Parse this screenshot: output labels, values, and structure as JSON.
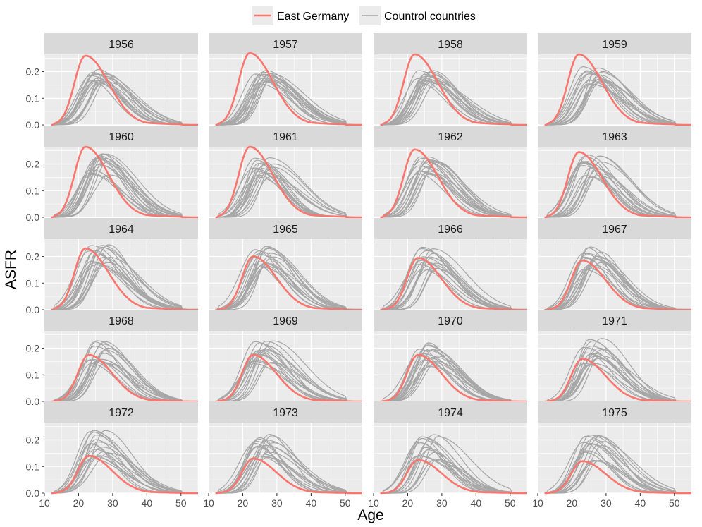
{
  "chart_data": {
    "type": "line",
    "xlabel": "Age",
    "ylabel": "ASFR",
    "xlim": [
      10,
      55
    ],
    "ylim": [
      0,
      0.265
    ],
    "x_ticks": [
      10,
      20,
      30,
      40,
      50
    ],
    "x_tick_labels": [
      "10",
      "20",
      "30",
      "40",
      "50"
    ],
    "y_ticks": [
      0.0,
      0.1,
      0.2
    ],
    "y_tick_labels": [
      "0.0",
      "0.1",
      "0.2"
    ],
    "legend": {
      "position": "top",
      "entries": [
        {
          "label": "East Germany",
          "color": "#f8766d"
        },
        {
          "label": "Countrol countries",
          "color": "#a6a6a6"
        }
      ]
    },
    "colors": {
      "east_germany": "#f8766d",
      "control": "#a6a6a6",
      "panel_bg": "#ebebeb",
      "strip_bg": "#d9d9d9",
      "grid": "#ffffff"
    },
    "age_grid": [
      12,
      15,
      18,
      20,
      22,
      24,
      26,
      28,
      30,
      33,
      36,
      40,
      45,
      50,
      55
    ],
    "control_countries_note": "approximately 17 control country curves per panel",
    "panels": [
      {
        "year": "1956",
        "east_germany_peak": 0.26,
        "east_germany_peak_age": 22,
        "control_peak_range": [
          0.15,
          0.21
        ]
      },
      {
        "year": "1957",
        "east_germany_peak": 0.27,
        "east_germany_peak_age": 22,
        "control_peak_range": [
          0.15,
          0.21
        ]
      },
      {
        "year": "1958",
        "east_germany_peak": 0.265,
        "east_germany_peak_age": 22,
        "control_peak_range": [
          0.15,
          0.22
        ]
      },
      {
        "year": "1959",
        "east_germany_peak": 0.265,
        "east_germany_peak_age": 22,
        "control_peak_range": [
          0.15,
          0.22
        ]
      },
      {
        "year": "1960",
        "east_germany_peak": 0.265,
        "east_germany_peak_age": 22,
        "control_peak_range": [
          0.15,
          0.24
        ]
      },
      {
        "year": "1961",
        "east_germany_peak": 0.265,
        "east_germany_peak_age": 22,
        "control_peak_range": [
          0.15,
          0.23
        ]
      },
      {
        "year": "1962",
        "east_germany_peak": 0.255,
        "east_germany_peak_age": 22,
        "control_peak_range": [
          0.15,
          0.23
        ]
      },
      {
        "year": "1963",
        "east_germany_peak": 0.245,
        "east_germany_peak_age": 22,
        "control_peak_range": [
          0.15,
          0.25
        ]
      },
      {
        "year": "1964",
        "east_germany_peak": 0.23,
        "east_germany_peak_age": 22,
        "control_peak_range": [
          0.15,
          0.245
        ]
      },
      {
        "year": "1965",
        "east_germany_peak": 0.2,
        "east_germany_peak_age": 23,
        "control_peak_range": [
          0.15,
          0.24
        ]
      },
      {
        "year": "1966",
        "east_germany_peak": 0.195,
        "east_germany_peak_age": 23,
        "control_peak_range": [
          0.15,
          0.24
        ]
      },
      {
        "year": "1967",
        "east_germany_peak": 0.185,
        "east_germany_peak_age": 23,
        "control_peak_range": [
          0.15,
          0.24
        ]
      },
      {
        "year": "1968",
        "east_germany_peak": 0.175,
        "east_germany_peak_age": 23,
        "control_peak_range": [
          0.14,
          0.23
        ]
      },
      {
        "year": "1969",
        "east_germany_peak": 0.175,
        "east_germany_peak_age": 23,
        "control_peak_range": [
          0.14,
          0.23
        ]
      },
      {
        "year": "1970",
        "east_germany_peak": 0.175,
        "east_germany_peak_age": 23,
        "control_peak_range": [
          0.13,
          0.23
        ]
      },
      {
        "year": "1971",
        "east_germany_peak": 0.16,
        "east_germany_peak_age": 23,
        "control_peak_range": [
          0.13,
          0.24
        ]
      },
      {
        "year": "1972",
        "east_germany_peak": 0.14,
        "east_germany_peak_age": 23,
        "control_peak_range": [
          0.12,
          0.24
        ]
      },
      {
        "year": "1973",
        "east_germany_peak": 0.13,
        "east_germany_peak_age": 23,
        "control_peak_range": [
          0.12,
          0.23
        ]
      },
      {
        "year": "1974",
        "east_germany_peak": 0.125,
        "east_germany_peak_age": 23,
        "control_peak_range": [
          0.12,
          0.23
        ]
      },
      {
        "year": "1975",
        "east_germany_peak": 0.12,
        "east_germany_peak_age": 23,
        "control_peak_range": [
          0.11,
          0.22
        ]
      }
    ]
  }
}
